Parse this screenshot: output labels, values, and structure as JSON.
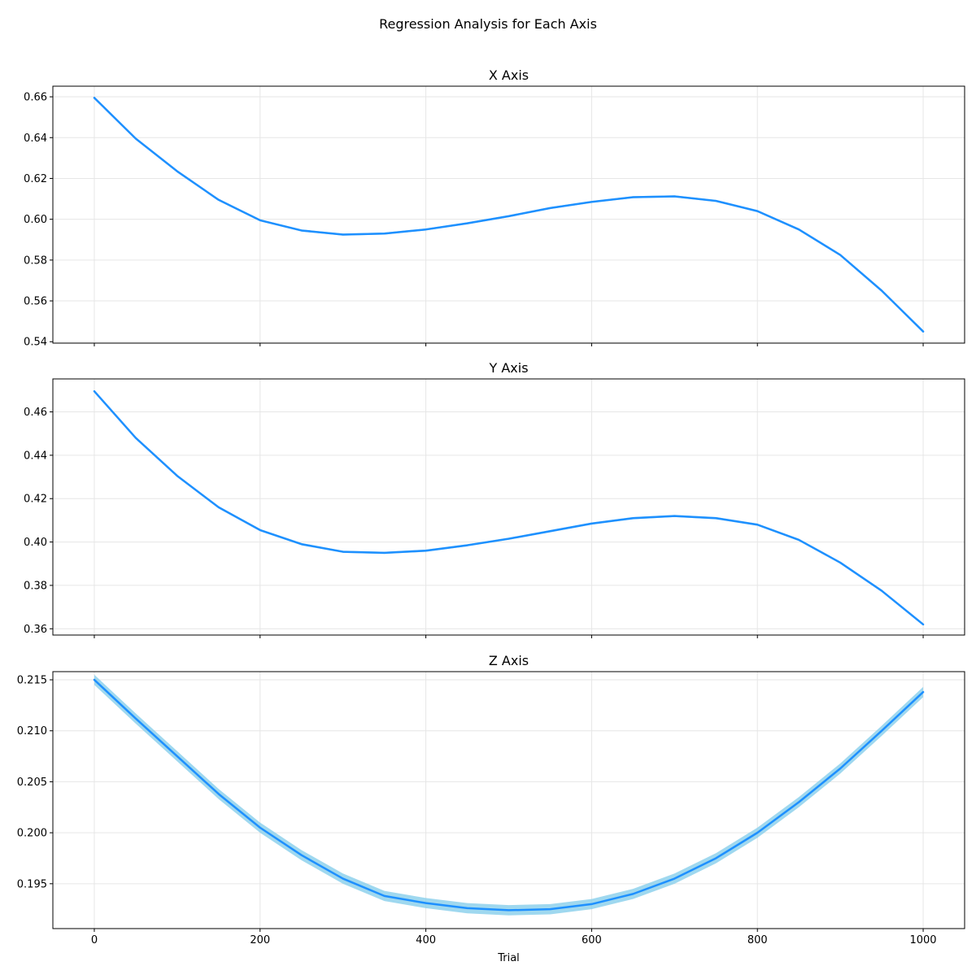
{
  "figure": {
    "suptitle": "Regression Analysis for Each Axis"
  },
  "colors": {
    "line": "#1e90ff",
    "band": "#87ceeb",
    "grid": "#e6e6e6",
    "axis": "#000000"
  },
  "chart_data": [
    {
      "type": "line",
      "title": "X Axis",
      "xlabel": "",
      "ylabel": "",
      "xlim": [
        -50,
        1050
      ],
      "ylim": [
        0.5393,
        0.6652
      ],
      "x_ticks": [
        0,
        200,
        400,
        600,
        800,
        1000
      ],
      "x_tick_labels": [
        "",
        "",
        "",
        "",
        "",
        ""
      ],
      "y_ticks": [
        0.54,
        0.56,
        0.58,
        0.6,
        0.62,
        0.64,
        0.66
      ],
      "y_tick_labels": [
        "0.54",
        "0.56",
        "0.58",
        "0.60",
        "0.62",
        "0.64",
        "0.66"
      ],
      "grid": true,
      "series": [
        {
          "x": [
            0,
            50,
            100,
            150,
            200,
            250,
            300,
            350,
            400,
            450,
            500,
            550,
            600,
            650,
            700,
            750,
            800,
            850,
            900,
            950,
            1000
          ],
          "y": [
            0.6595,
            0.6395,
            0.6235,
            0.6095,
            0.5995,
            0.5945,
            0.5925,
            0.593,
            0.595,
            0.598,
            0.6015,
            0.6055,
            0.6085,
            0.6108,
            0.6112,
            0.609,
            0.604,
            0.595,
            0.5825,
            0.565,
            0.545
          ],
          "band": 0.0005
        }
      ]
    },
    {
      "type": "line",
      "title": "Y Axis",
      "xlabel": "",
      "ylabel": "",
      "xlim": [
        -50,
        1050
      ],
      "ylim": [
        0.3571,
        0.4752
      ],
      "x_ticks": [
        0,
        200,
        400,
        600,
        800,
        1000
      ],
      "x_tick_labels": [
        "",
        "",
        "",
        "",
        "",
        ""
      ],
      "y_ticks": [
        0.36,
        0.38,
        0.4,
        0.42,
        0.44,
        0.46
      ],
      "y_tick_labels": [
        "0.36",
        "0.38",
        "0.40",
        "0.42",
        "0.44",
        "0.46"
      ],
      "grid": true,
      "series": [
        {
          "x": [
            0,
            50,
            100,
            150,
            200,
            250,
            300,
            350,
            400,
            450,
            500,
            550,
            600,
            650,
            700,
            750,
            800,
            850,
            900,
            950,
            1000
          ],
          "y": [
            0.4695,
            0.448,
            0.4305,
            0.416,
            0.4055,
            0.399,
            0.3955,
            0.395,
            0.396,
            0.3985,
            0.4015,
            0.405,
            0.4085,
            0.411,
            0.412,
            0.411,
            0.408,
            0.401,
            0.3905,
            0.3775,
            0.362
          ],
          "band": 0.0005
        }
      ]
    },
    {
      "type": "line",
      "title": "Z Axis",
      "xlabel": "Trial",
      "ylabel": "",
      "xlim": [
        -50,
        1050
      ],
      "ylim": [
        0.1906,
        0.2158
      ],
      "x_ticks": [
        0,
        200,
        400,
        600,
        800,
        1000
      ],
      "x_tick_labels": [
        "0",
        "200",
        "400",
        "600",
        "800",
        "1000"
      ],
      "y_ticks": [
        0.195,
        0.2,
        0.205,
        0.21,
        0.215
      ],
      "y_tick_labels": [
        "0.195",
        "0.200",
        "0.205",
        "0.210",
        "0.215"
      ],
      "grid": true,
      "series": [
        {
          "x": [
            0,
            50,
            100,
            150,
            200,
            250,
            300,
            350,
            400,
            450,
            500,
            550,
            600,
            650,
            700,
            750,
            800,
            850,
            900,
            950,
            1000
          ],
          "y": [
            0.215,
            0.2112,
            0.2075,
            0.2038,
            0.2005,
            0.1978,
            0.1955,
            0.1938,
            0.1931,
            0.1926,
            0.1924,
            0.1925,
            0.193,
            0.194,
            0.1955,
            0.1975,
            0.2,
            0.203,
            0.2063,
            0.21,
            0.2138
          ],
          "band": 0.0005
        }
      ]
    }
  ]
}
